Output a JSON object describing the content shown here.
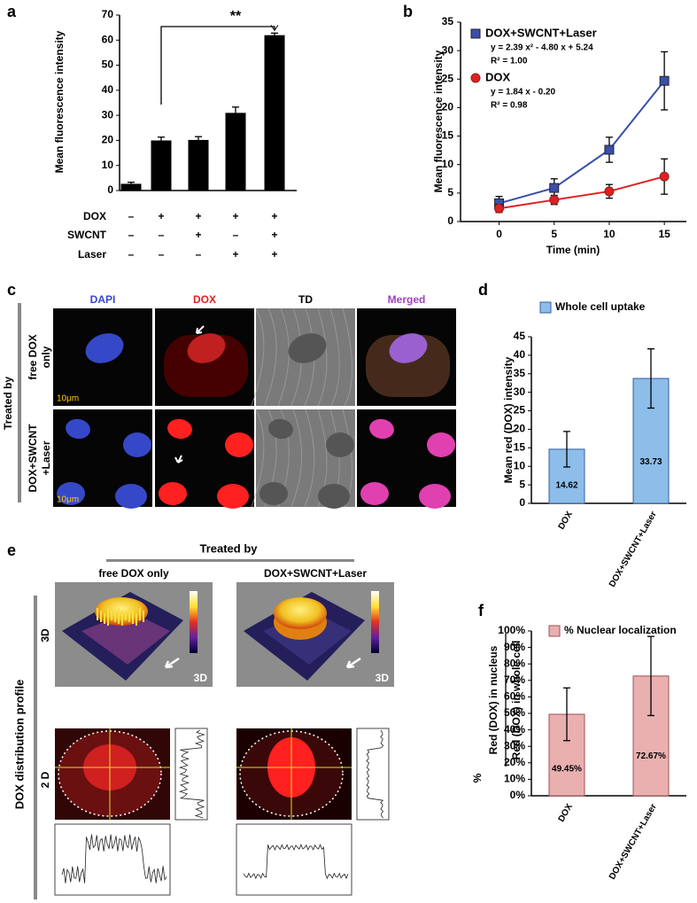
{
  "chart_data": [
    {
      "type": "bar",
      "panel": "a",
      "ylabel": "Mean fluorescence intensity",
      "values": [
        2.5,
        19.8,
        20,
        30.8,
        61.8
      ],
      "errors": [
        0.8,
        1.5,
        1.5,
        2.5,
        1
      ],
      "color": "#000000",
      "ylim": [
        0,
        70
      ],
      "yticks": [
        0,
        10,
        20,
        30,
        40,
        50,
        60,
        70
      ],
      "annotation": "**",
      "conditions": [
        {
          "name": "DOX",
          "marks": [
            "–",
            "+",
            "+",
            "+",
            "+"
          ]
        },
        {
          "name": "SWCNT",
          "marks": [
            "–",
            "–",
            "+",
            "–",
            "+"
          ]
        },
        {
          "name": "Laser",
          "marks": [
            "–",
            "–",
            "–",
            "+",
            "+"
          ]
        }
      ]
    },
    {
      "type": "line",
      "panel": "b",
      "xlabel": "Time (min)",
      "ylabel": "Mean fluorescence intensity",
      "x": [
        0,
        5,
        10,
        15
      ],
      "xlim": [
        -3.5,
        17
      ],
      "xticks": [
        0,
        5,
        10,
        15
      ],
      "ylim": [
        0,
        35
      ],
      "yticks": [
        0,
        5,
        10,
        15,
        20,
        25,
        30,
        35
      ],
      "series": [
        {
          "name": "DOX+SWCNT+Laser",
          "color": "#3a4fa8",
          "marker": "square",
          "fit": "y = 2.39 x² - 4.80 x + 5.24",
          "r2": "R² = 1.00",
          "values": [
            3.2,
            5.9,
            12.6,
            24.7
          ],
          "errors": [
            1.2,
            1.6,
            2.2,
            5.1
          ]
        },
        {
          "name": "DOX",
          "color": "#e02020",
          "marker": "circle",
          "fit": "y = 1.84 x - 0.20",
          "r2": "R² = 0.98",
          "values": [
            2.3,
            3.8,
            5.3,
            7.9
          ],
          "errors": [
            0.7,
            0.8,
            1.2,
            3.1
          ]
        }
      ]
    },
    {
      "type": "bar",
      "panel": "d",
      "legend": "Whole cell uptake",
      "ylabel": "Mean red (DOX) intensity",
      "categories": [
        "DOX",
        "DOX+SWCNT+Laser"
      ],
      "values": [
        14.62,
        33.73
      ],
      "errors": [
        4.8,
        8.0
      ],
      "color": "#8dbde9",
      "ylim": [
        0,
        45
      ],
      "yticks": [
        0,
        5,
        10,
        15,
        20,
        25,
        30,
        35,
        40,
        45
      ]
    },
    {
      "type": "bar",
      "panel": "f",
      "legend": "% Nuclear localization",
      "ylabel": {
        "prefix": "%",
        "numerator": "Red (DOX) in nucleus",
        "denominator": "Red (DOX) in whole cell"
      },
      "categories": [
        "DOX",
        "DOX+SWCNT+Laser"
      ],
      "values": [
        49.45,
        72.67
      ],
      "value_labels": [
        "49.45%",
        "72.67%"
      ],
      "errors": [
        16,
        24
      ],
      "color": "#eab0b0",
      "ylim": [
        0,
        100
      ],
      "yticks": [
        {
          "value": 0,
          "label": "0%"
        },
        {
          "value": 10,
          "label": "10%"
        },
        {
          "value": 20,
          "label": "20%"
        },
        {
          "value": 30,
          "label": "30%"
        },
        {
          "value": 40,
          "label": "40%"
        },
        {
          "value": 50,
          "label": "50%"
        },
        {
          "value": 60,
          "label": "60%"
        },
        {
          "value": 70,
          "label": "70%"
        },
        {
          "value": 80,
          "label": "80%"
        },
        {
          "value": 90,
          "label": "90%"
        },
        {
          "value": 100,
          "label": "100%"
        }
      ]
    }
  ],
  "panel_c": {
    "label": "c",
    "side": "Treated by",
    "columns": [
      "DAPI",
      "DOX",
      "TD",
      "Merged"
    ],
    "rows": [
      [
        "free DOX",
        "only"
      ],
      [
        "DOX+SWCNT",
        "+Laser"
      ]
    ],
    "scale": "10μm"
  },
  "panel_e": {
    "label": "e",
    "header": "Treated by",
    "columns": [
      "free DOX only",
      "DOX+SWCNT+Laser"
    ],
    "side": "DOX distribution profile",
    "rows": [
      "3D",
      "2 D"
    ],
    "corner": "3D"
  }
}
